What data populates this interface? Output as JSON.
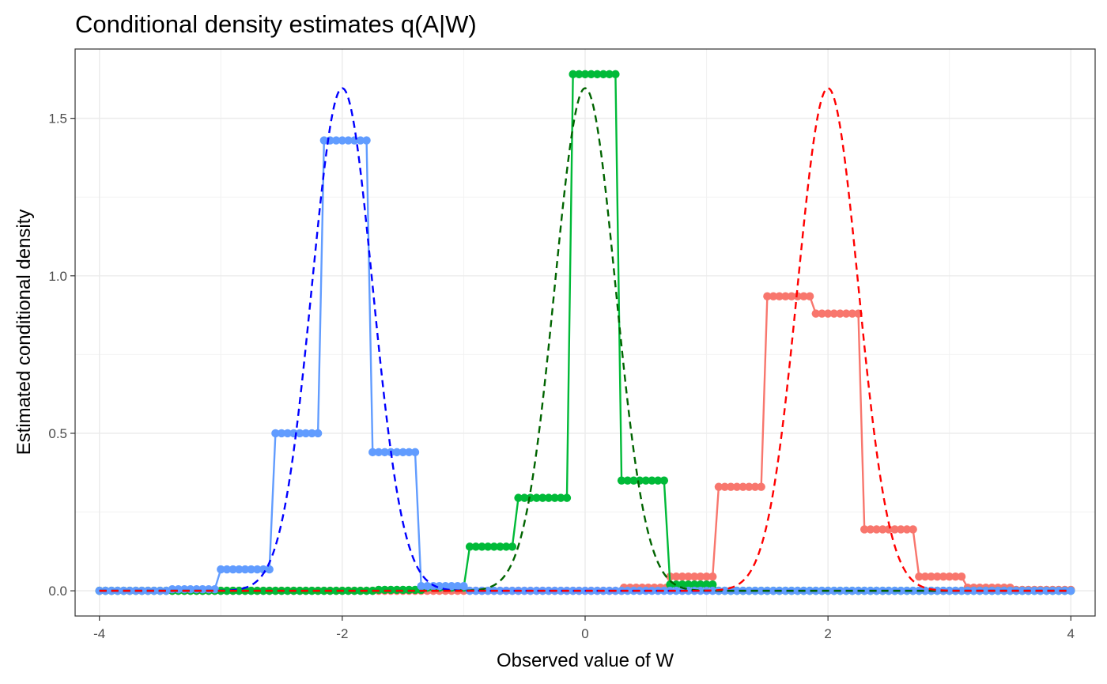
{
  "chart_data": {
    "type": "line",
    "title": "Conditional density estimates q(A|W)",
    "xlabel": "Observed value of W",
    "ylabel": "Estimated conditional density",
    "xlim": [
      -4.2,
      4.2
    ],
    "ylim": [
      -0.08,
      1.72
    ],
    "x_ticks": [
      -4,
      -2,
      0,
      2,
      4
    ],
    "x_tick_labels": [
      "-4",
      "-2",
      "0",
      "2",
      "4"
    ],
    "y_ticks": [
      0.0,
      0.5,
      1.0,
      1.5
    ],
    "y_tick_labels": [
      "0.0",
      "0.5",
      "1.0",
      "1.5"
    ],
    "grid": true,
    "legend": "none",
    "estimate_series": [
      {
        "color": "#F8766D",
        "bins": [
          {
            "x0": -4.0,
            "x1": 0.3,
            "y": 0.0
          },
          {
            "x0": 0.32,
            "x1": 0.68,
            "y": 0.01
          },
          {
            "x0": 0.7,
            "x1": 1.05,
            "y": 0.045
          },
          {
            "x0": 1.1,
            "x1": 1.45,
            "y": 0.33
          },
          {
            "x0": 1.5,
            "x1": 1.85,
            "y": 0.935
          },
          {
            "x0": 1.9,
            "x1": 2.25,
            "y": 0.88
          },
          {
            "x0": 2.3,
            "x1": 2.7,
            "y": 0.195
          },
          {
            "x0": 2.75,
            "x1": 3.1,
            "y": 0.045
          },
          {
            "x0": 3.15,
            "x1": 3.5,
            "y": 0.01
          },
          {
            "x0": 3.55,
            "x1": 4.0,
            "y": 0.003
          }
        ]
      },
      {
        "color": "#00BA38",
        "bins": [
          {
            "x0": -4.0,
            "x1": -1.75,
            "y": 0.0
          },
          {
            "x0": -1.7,
            "x1": -1.35,
            "y": 0.003
          },
          {
            "x0": -1.3,
            "x1": -1.0,
            "y": 0.01
          },
          {
            "x0": -0.95,
            "x1": -0.6,
            "y": 0.14
          },
          {
            "x0": -0.55,
            "x1": -0.15,
            "y": 0.295
          },
          {
            "x0": -0.1,
            "x1": 0.25,
            "y": 1.64
          },
          {
            "x0": 0.3,
            "x1": 0.65,
            "y": 0.35
          },
          {
            "x0": 0.7,
            "x1": 1.05,
            "y": 0.02
          },
          {
            "x0": 1.1,
            "x1": 4.0,
            "y": 0.0
          }
        ]
      },
      {
        "color": "#619CFF",
        "bins": [
          {
            "x0": -4.0,
            "x1": -3.45,
            "y": 0.0
          },
          {
            "x0": -3.4,
            "x1": -3.05,
            "y": 0.005
          },
          {
            "x0": -3.0,
            "x1": -2.6,
            "y": 0.068
          },
          {
            "x0": -2.55,
            "x1": -2.2,
            "y": 0.5
          },
          {
            "x0": -2.15,
            "x1": -1.8,
            "y": 1.43
          },
          {
            "x0": -1.75,
            "x1": -1.4,
            "y": 0.44
          },
          {
            "x0": -1.35,
            "x1": -1.0,
            "y": 0.015
          },
          {
            "x0": -0.95,
            "x1": 4.0,
            "y": 0.0
          }
        ]
      }
    ],
    "true_density_series": [
      {
        "color": "#0000FF",
        "mean": -2.0,
        "sd": 0.25
      },
      {
        "color": "#006400",
        "mean": 0.0,
        "sd": 0.25
      },
      {
        "color": "#FF0000",
        "mean": 2.0,
        "sd": 0.25
      }
    ]
  }
}
